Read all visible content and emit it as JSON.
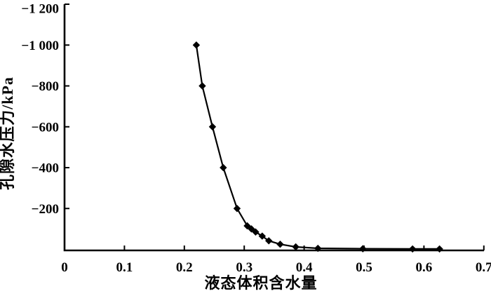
{
  "figure": {
    "background_color": "#ffffff",
    "ink_color": "#000000"
  },
  "chart_data": {
    "type": "line",
    "title": "",
    "xlabel": "液态体积含水量",
    "ylabel": "孔隙水压力/kPa",
    "marker": "filled-diamond",
    "marker_color": "#000000",
    "line_color": "#000000",
    "grid": false,
    "legend": "none",
    "xlim": [
      0,
      0.7
    ],
    "ylim": [
      0,
      -1200
    ],
    "x_ticks": {
      "values": [
        0,
        0.1,
        0.2,
        0.3,
        0.4,
        0.5,
        0.6,
        0.7
      ],
      "labels": [
        "0",
        "0.1",
        "0.2",
        "0.3",
        "0.4",
        "0.5",
        "0.6",
        "0.7"
      ]
    },
    "y_ticks": {
      "values": [
        -1200,
        -1000,
        -800,
        -600,
        -400,
        -200
      ],
      "labels": [
        "−1 200",
        "−1 000",
        "−800",
        "−600",
        "−400",
        "−200"
      ]
    },
    "series": [
      {
        "points": [
          [
            0.22,
            -1000
          ],
          [
            0.23,
            -800
          ],
          [
            0.247,
            -600
          ],
          [
            0.265,
            -400
          ],
          [
            0.288,
            -200
          ],
          [
            0.305,
            -115
          ],
          [
            0.312,
            -100
          ],
          [
            0.319,
            -85
          ],
          [
            0.33,
            -65
          ],
          [
            0.341,
            -42
          ],
          [
            0.36,
            -25
          ],
          [
            0.386,
            -12
          ],
          [
            0.423,
            -5
          ],
          [
            0.498,
            -3
          ],
          [
            0.581,
            -2
          ],
          [
            0.626,
            -2
          ]
        ]
      }
    ]
  }
}
